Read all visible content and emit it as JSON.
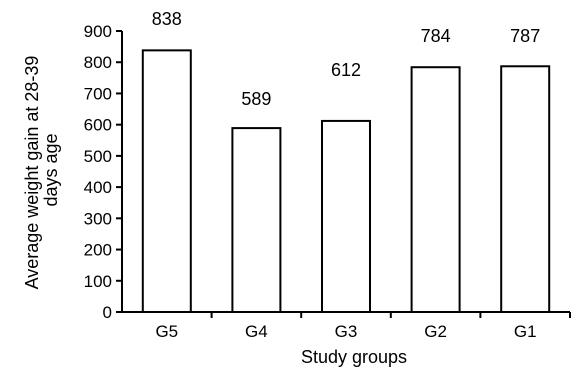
{
  "chart_data": {
    "type": "bar",
    "title": "",
    "xlabel": "Study groups",
    "ylabel_lines": [
      "Average weight gain at 28-39",
      "days age"
    ],
    "categories": [
      "G5",
      "G4",
      "G3",
      "G2",
      "G1"
    ],
    "values": [
      838,
      589,
      612,
      784,
      787
    ],
    "data_labels": [
      "838",
      "589",
      "612",
      "784",
      "787"
    ],
    "ylim": [
      0,
      900
    ],
    "yticks": [
      0,
      100,
      200,
      300,
      400,
      500,
      600,
      700,
      800,
      900
    ],
    "grid": false,
    "legend": "none",
    "colors": {
      "bar_fill": "#ffffff",
      "bar_stroke": "#000000",
      "axis": "#000000",
      "text": "#000000"
    }
  }
}
